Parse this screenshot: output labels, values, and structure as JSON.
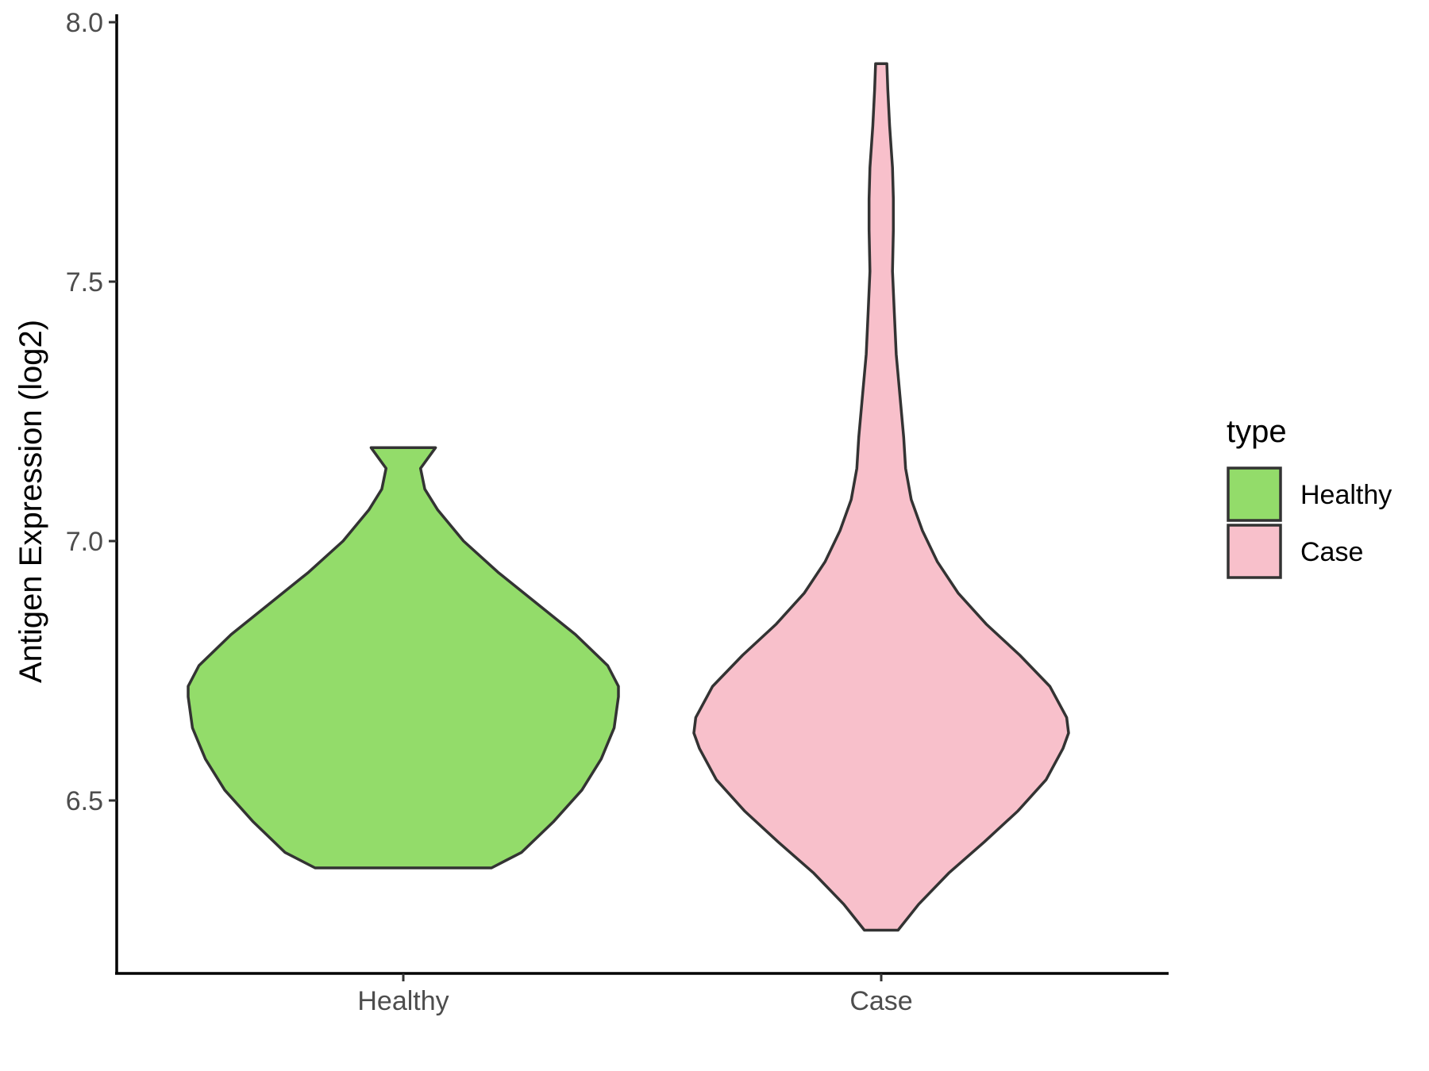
{
  "chart_data": {
    "type": "violin",
    "title": "",
    "xlabel": "",
    "ylabel": "Antigen Expression (log2)",
    "ylim": [
      6.18,
      8.0
    ],
    "yticks": [
      6.5,
      7.0,
      7.5,
      8.0
    ],
    "ytick_labels": [
      "6.5",
      "7.0",
      "7.5",
      "8.0"
    ],
    "categories": [
      "Healthy",
      "Case"
    ],
    "grid": false,
    "legend": {
      "title": "type",
      "placement": "right",
      "entries": [
        "Healthy",
        "Case"
      ]
    },
    "series": [
      {
        "category": "Healthy",
        "color": "#93DC6A",
        "min": 6.37,
        "max": 7.18,
        "profile": [
          [
            6.37,
            0.41
          ],
          [
            6.4,
            0.55
          ],
          [
            6.46,
            0.7
          ],
          [
            6.52,
            0.83
          ],
          [
            6.58,
            0.92
          ],
          [
            6.64,
            0.98
          ],
          [
            6.7,
            1.0
          ],
          [
            6.72,
            1.0
          ],
          [
            6.76,
            0.95
          ],
          [
            6.82,
            0.8
          ],
          [
            6.88,
            0.62
          ],
          [
            6.94,
            0.44
          ],
          [
            7.0,
            0.28
          ],
          [
            7.06,
            0.16
          ],
          [
            7.1,
            0.1
          ],
          [
            7.14,
            0.08
          ],
          [
            7.18,
            0.15
          ]
        ]
      },
      {
        "category": "Case",
        "color": "#F8C0CB",
        "min": 6.25,
        "max": 7.92,
        "profile": [
          [
            6.25,
            0.09
          ],
          [
            6.3,
            0.2
          ],
          [
            6.36,
            0.36
          ],
          [
            6.42,
            0.55
          ],
          [
            6.48,
            0.73
          ],
          [
            6.54,
            0.88
          ],
          [
            6.6,
            0.97
          ],
          [
            6.63,
            1.0
          ],
          [
            6.66,
            0.99
          ],
          [
            6.72,
            0.9
          ],
          [
            6.78,
            0.74
          ],
          [
            6.84,
            0.56
          ],
          [
            6.9,
            0.41
          ],
          [
            6.96,
            0.3
          ],
          [
            7.02,
            0.22
          ],
          [
            7.08,
            0.16
          ],
          [
            7.14,
            0.13
          ],
          [
            7.2,
            0.12
          ],
          [
            7.28,
            0.1
          ],
          [
            7.36,
            0.08
          ],
          [
            7.44,
            0.07
          ],
          [
            7.52,
            0.06
          ],
          [
            7.6,
            0.065
          ],
          [
            7.66,
            0.065
          ],
          [
            7.72,
            0.06
          ],
          [
            7.8,
            0.045
          ],
          [
            7.87,
            0.035
          ],
          [
            7.92,
            0.03
          ]
        ]
      }
    ]
  }
}
